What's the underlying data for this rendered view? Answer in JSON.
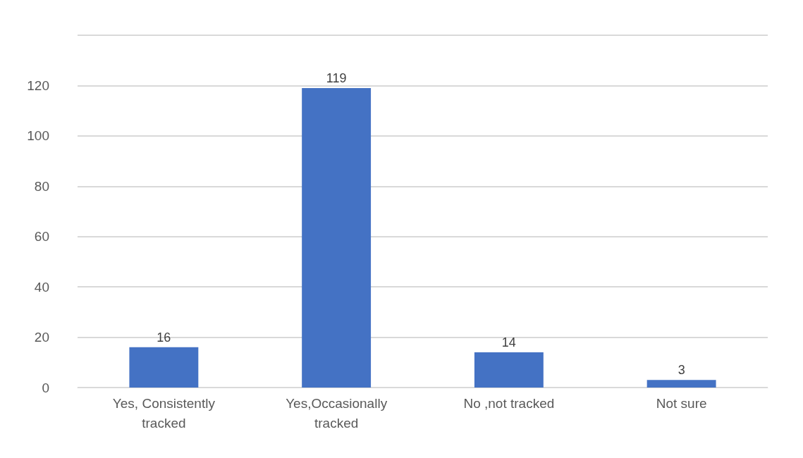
{
  "chart_data": {
    "type": "bar",
    "categories": [
      "Yes, Consistently tracked",
      "Yes,Occasionally tracked",
      "No ,not tracked",
      "Not sure"
    ],
    "values": [
      16,
      119,
      14,
      3
    ],
    "color": "#4472c4",
    "ylim": [
      0,
      140
    ],
    "yticks": [
      0,
      20,
      40,
      60,
      80,
      100,
      120,
      {
        "value": 140,
        "label": null
      }
    ],
    "grid": true,
    "data_labels": true
  }
}
